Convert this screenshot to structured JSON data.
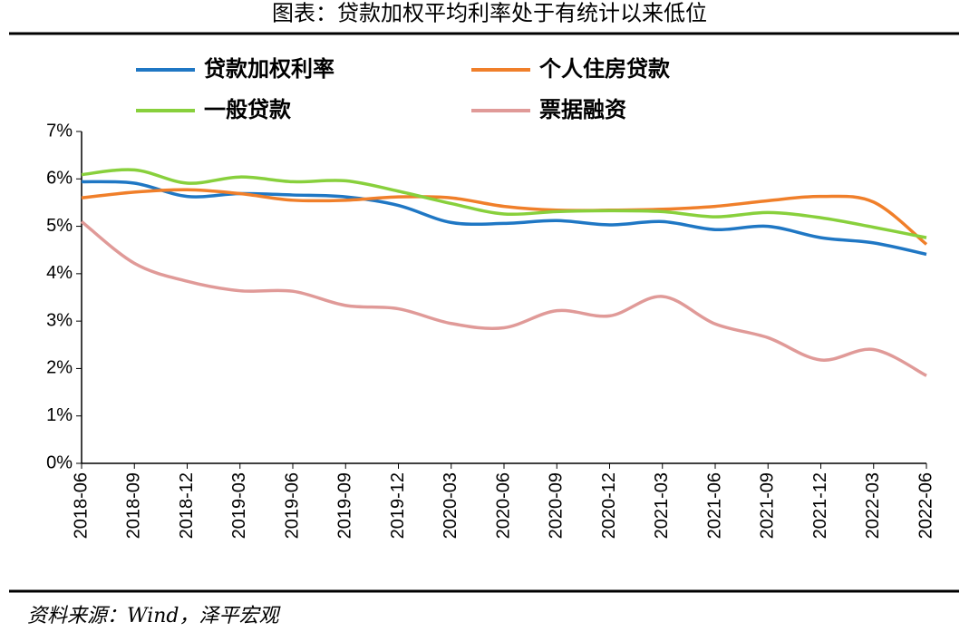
{
  "chart_data": {
    "type": "line",
    "title": "图表：贷款加权平均利率处于有统计以来低位",
    "source": "资料来源：Wind，泽平宏观",
    "categories": [
      "2018-06",
      "2018-09",
      "2018-12",
      "2019-03",
      "2019-06",
      "2019-09",
      "2019-12",
      "2020-03",
      "2020-06",
      "2020-09",
      "2020-12",
      "2021-03",
      "2021-06",
      "2021-09",
      "2021-12",
      "2022-03",
      "2022-06"
    ],
    "series": [
      {
        "name": "贷款加权利率",
        "color": "#1f77c4",
        "values": [
          5.94,
          5.91,
          5.63,
          5.69,
          5.66,
          5.62,
          5.44,
          5.08,
          5.06,
          5.12,
          5.03,
          5.1,
          4.93,
          5.0,
          4.76,
          4.65,
          4.41
        ]
      },
      {
        "name": "个人住房贷款",
        "color": "#f07f2a",
        "values": [
          5.6,
          5.72,
          5.77,
          5.69,
          5.55,
          5.55,
          5.62,
          5.6,
          5.42,
          5.34,
          5.34,
          5.36,
          5.42,
          5.54,
          5.63,
          5.51,
          4.62
        ]
      },
      {
        "name": "一般贷款",
        "color": "#88d03c",
        "values": [
          6.09,
          6.19,
          5.91,
          6.04,
          5.94,
          5.96,
          5.74,
          5.48,
          5.26,
          5.31,
          5.33,
          5.31,
          5.2,
          5.29,
          5.18,
          4.98,
          4.76
        ]
      },
      {
        "name": "票据融资",
        "color": "#e09a98",
        "values": [
          5.1,
          4.22,
          3.84,
          3.64,
          3.63,
          3.33,
          3.26,
          2.95,
          2.86,
          3.22,
          3.11,
          3.52,
          2.94,
          2.65,
          2.18,
          2.4,
          1.85
        ]
      }
    ],
    "ylim": [
      0,
      7
    ],
    "yticks": [
      {
        "value": 0,
        "label": "0%"
      },
      {
        "value": 1,
        "label": "1%"
      },
      {
        "value": 2,
        "label": "2%"
      },
      {
        "value": 3,
        "label": "3%"
      },
      {
        "value": 4,
        "label": "4%"
      },
      {
        "value": 5,
        "label": "5%"
      },
      {
        "value": 6,
        "label": "6%"
      },
      {
        "value": 7,
        "label": "7%"
      }
    ],
    "grid": false
  }
}
